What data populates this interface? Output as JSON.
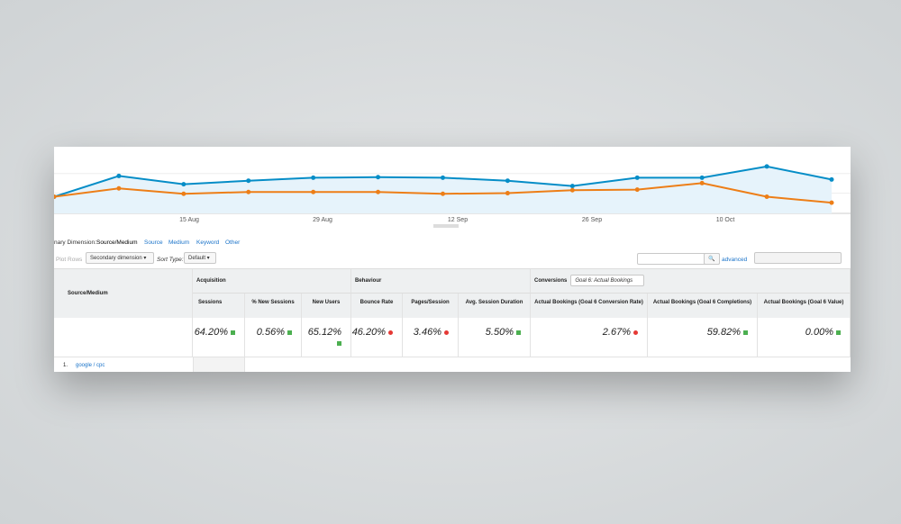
{
  "chart": {
    "type": "line",
    "x_labels": [
      "15 Aug",
      "29 Aug",
      "12 Sep",
      "26 Sep",
      "10 Oct"
    ],
    "ylim": [
      0,
      100
    ],
    "series": [
      {
        "color": "#058dc7",
        "values": [
          28,
          63,
          49,
          55,
          60,
          61,
          60,
          55,
          46,
          60,
          60,
          79,
          57
        ]
      },
      {
        "color": "#ed7e17",
        "values": [
          28,
          42,
          33,
          36,
          36,
          36,
          33,
          34,
          39,
          40,
          51,
          28,
          18
        ]
      }
    ]
  },
  "dimension_bar": {
    "label": "nary Dimension:",
    "active": "Source/Medium",
    "options": [
      "Source",
      "Medium",
      "Keyword",
      "Other"
    ]
  },
  "toolbar": {
    "plot_rows": "Plot Rows",
    "secondary": "Secondary dimension",
    "sort_label": "Sort Type:",
    "sort": "Default",
    "advanced": "advanced"
  },
  "table": {
    "dimension": "Source/Medium",
    "groups": [
      "Acquisition",
      "Behaviour",
      "Conversions"
    ],
    "goal": "Goal 6: Actual Bookings",
    "columns": [
      "Sessions",
      "% New Sessions",
      "New Users",
      "Bounce Rate",
      "Pages/Session",
      "Avg. Session Duration",
      "Actual Bookings (Goal 6 Conversion Rate)",
      "Actual Bookings (Goal 6 Completions)",
      "Actual Bookings (Goal 6 Value)"
    ],
    "totals": [
      "64.20%",
      "0.56%",
      "65.12%",
      "46.20%",
      "3.46%",
      "5.50%",
      "2.67%",
      "59.82%",
      "0.00%"
    ],
    "trends": [
      "up",
      "up",
      "up",
      "down",
      "down",
      "up",
      "down",
      "up",
      "up"
    ],
    "rows": [
      {
        "index": "1.",
        "name": "google / cpc"
      }
    ]
  }
}
